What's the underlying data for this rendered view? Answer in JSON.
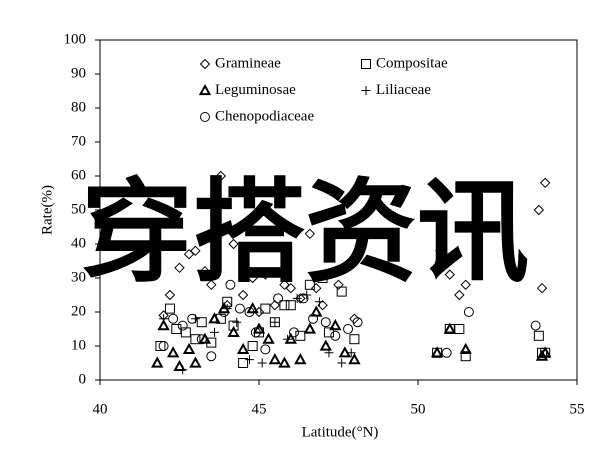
{
  "chart_data": {
    "type": "scatter",
    "xlabel": "Latitude(°N)",
    "ylabel": "Rate(%)",
    "xlim": [
      40,
      55
    ],
    "xticks": [
      40,
      45,
      50,
      55
    ],
    "ylim": [
      0,
      100
    ],
    "yticks": [
      0,
      10,
      20,
      30,
      40,
      50,
      60,
      70,
      80,
      90,
      100
    ],
    "grid": false,
    "legend": "top-left",
    "series": [
      {
        "name": "Gramineae",
        "marker": "diamond",
        "color": "#000000",
        "x": [
          42,
          42.2,
          42.5,
          42.8,
          43,
          43.3,
          43.5,
          43.8,
          44,
          44.2,
          44.5,
          44.8,
          45,
          45.2,
          45.5,
          45.8,
          46,
          46.3,
          46.6,
          46.8,
          47,
          47.5,
          48,
          50.7,
          51,
          51.3,
          51.5,
          53.9,
          54,
          53.8
        ],
        "values": [
          19,
          25,
          33,
          37,
          38,
          32,
          28,
          60,
          22,
          40,
          25,
          30,
          20,
          31,
          22,
          28,
          27,
          24,
          43,
          27,
          22,
          28,
          18,
          38,
          31,
          25,
          28,
          27,
          58,
          50
        ]
      },
      {
        "name": "Compositae",
        "marker": "square",
        "color": "#000000",
        "x": [
          41.9,
          42.2,
          42.4,
          42.7,
          43,
          43.2,
          43.5,
          43.8,
          44,
          44.2,
          44.5,
          44.8,
          45,
          45.2,
          45.5,
          45.8,
          46,
          46.3,
          46.6,
          47,
          47.2,
          47.6,
          48,
          50.6,
          51,
          51.3,
          51.5,
          53.8,
          53.9,
          54
        ],
        "values": [
          10,
          21,
          15,
          14,
          12,
          17,
          11,
          18,
          23,
          16,
          5,
          10,
          14,
          21,
          17,
          22,
          22,
          13,
          28,
          30,
          14,
          26,
          12,
          8,
          15,
          15,
          7,
          13,
          8,
          8
        ]
      },
      {
        "name": "Leguminosae",
        "marker": "triangle",
        "color": "#000000",
        "x": [
          41.8,
          42,
          42.3,
          42.5,
          42.8,
          43,
          43.3,
          43.6,
          43.9,
          44.2,
          44.5,
          44.8,
          45,
          45.3,
          45.5,
          45.8,
          46,
          46.3,
          46.6,
          46.8,
          47.1,
          47.4,
          47.7,
          48,
          50.6,
          51,
          51.5,
          53.9,
          54
        ],
        "values": [
          5,
          16,
          8,
          4,
          9,
          5,
          12,
          18,
          21,
          14,
          9,
          21,
          15,
          12,
          6,
          5,
          12,
          6,
          15,
          20,
          10,
          16,
          8,
          6,
          8,
          15,
          9,
          7,
          8
        ]
      },
      {
        "name": "Liliaceae",
        "marker": "plus",
        "color": "#000000",
        "x": [
          42,
          42.6,
          43,
          43.6,
          44,
          44.3,
          44.7,
          45.1,
          45.5,
          45.9,
          46.2,
          46.5,
          46.9,
          47.2,
          47.6,
          47.9
        ],
        "values": [
          18,
          3,
          18,
          14,
          21,
          17,
          6,
          5,
          17,
          12,
          24,
          25,
          23,
          8,
          5,
          8
        ]
      },
      {
        "name": "Chenopodiaceae",
        "marker": "circle",
        "color": "#000000",
        "x": [
          42,
          42.3,
          42.6,
          42.9,
          43.2,
          43.5,
          43.9,
          44.1,
          44.4,
          44.7,
          44.9,
          45.2,
          45.6,
          46.1,
          46.4,
          46.7,
          47.1,
          47.4,
          47.8,
          48.1,
          50.9,
          51.6,
          53.7
        ],
        "values": [
          10,
          18,
          16,
          18,
          12,
          7,
          20,
          28,
          21,
          20,
          14,
          9,
          24,
          14,
          24,
          18,
          17,
          13,
          15,
          17,
          8,
          20,
          16
        ]
      }
    ]
  },
  "watermark": {
    "text": "穿搭资讯",
    "color": "#ff00ff"
  }
}
